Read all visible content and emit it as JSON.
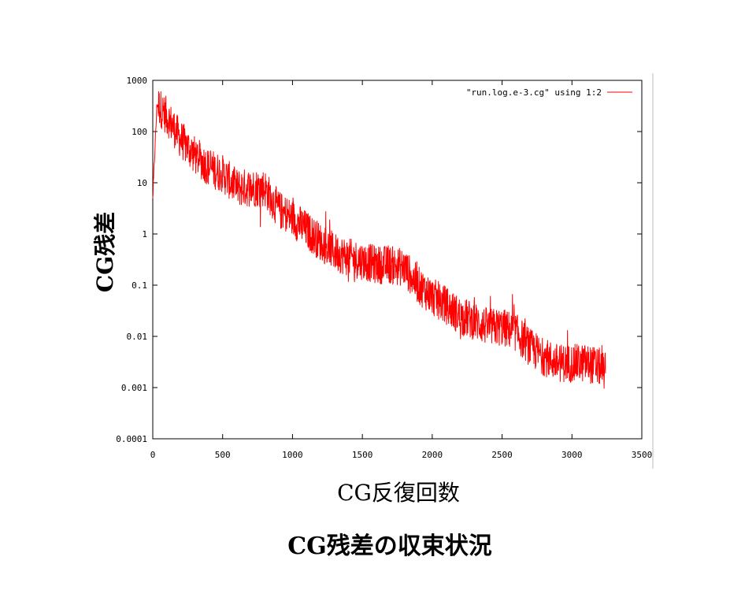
{
  "caption": "CG残差の収束状況",
  "chart_data": {
    "type": "line",
    "title": "",
    "xlabel": "CG反復回数",
    "ylabel": "CG残差",
    "xlim": [
      0,
      3500
    ],
    "ylim": [
      0.0001,
      1000
    ],
    "yscale": "log",
    "grid": false,
    "legend_position": "top-right",
    "x_ticks": [
      "0",
      "500",
      "1000",
      "1500",
      "2000",
      "2500",
      "3000",
      "3500"
    ],
    "y_ticks": [
      "0.0001",
      "0.001",
      "0.01",
      "0.1",
      "1",
      "10",
      "100",
      "1000"
    ],
    "series": [
      {
        "name": "\"run.log.e-3.cg\" using 1:2",
        "color": "#ff0000",
        "x": [
          0,
          30,
          100,
          200,
          300,
          400,
          500,
          600,
          700,
          800,
          900,
          1000,
          1100,
          1200,
          1300,
          1400,
          1500,
          1600,
          1700,
          1800,
          1850,
          1900,
          2000,
          2100,
          2200,
          2300,
          2400,
          2500,
          2600,
          2700,
          2800,
          2900,
          3000,
          3100,
          3200,
          3240
        ],
        "y": [
          5,
          350,
          200,
          70,
          35,
          20,
          15,
          8,
          8,
          8,
          3,
          2,
          1.2,
          0.7,
          0.45,
          0.35,
          0.3,
          0.25,
          0.25,
          0.22,
          0.15,
          0.1,
          0.06,
          0.04,
          0.025,
          0.02,
          0.015,
          0.015,
          0.012,
          0.006,
          0.004,
          0.003,
          0.003,
          0.003,
          0.0025,
          0.002
        ]
      }
    ]
  }
}
